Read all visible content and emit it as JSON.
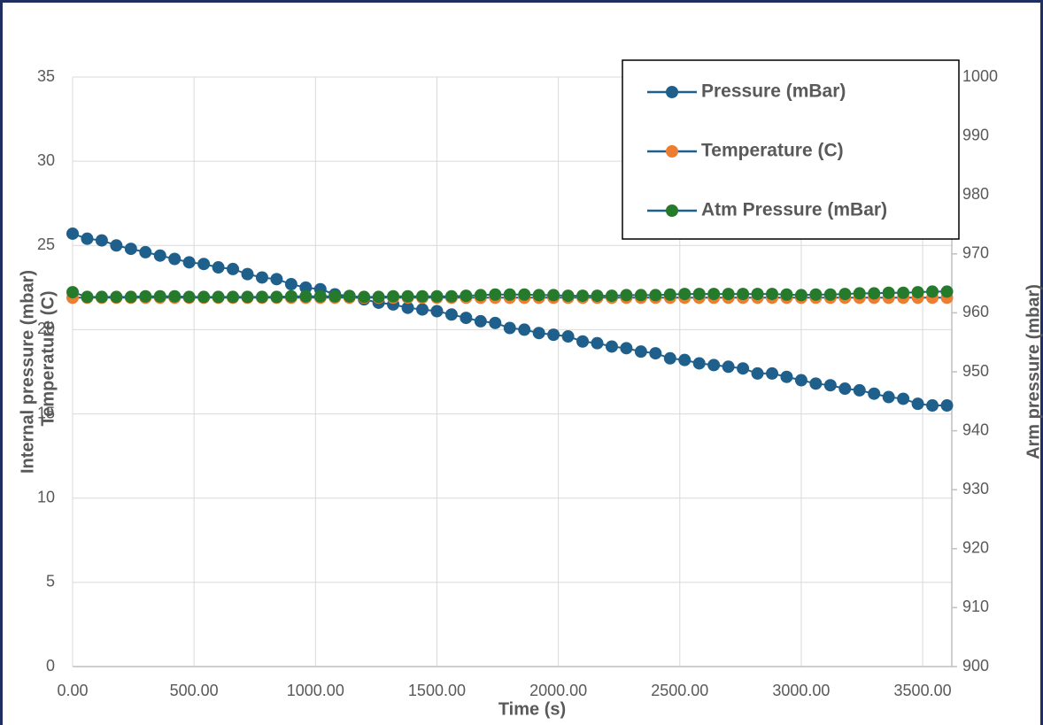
{
  "chart_data": {
    "type": "line",
    "x_label": "Time (s)",
    "y_label": "Internal pressure (mbar)",
    "y_label_2": "Temperature (C)",
    "y2_label": "Arm pressure (mbar)",
    "x": [
      0,
      60,
      120,
      180,
      240,
      300,
      360,
      420,
      480,
      540,
      600,
      660,
      720,
      780,
      840,
      900,
      960,
      1020,
      1080,
      1140,
      1200,
      1260,
      1320,
      1380,
      1440,
      1500,
      1560,
      1620,
      1680,
      1740,
      1800,
      1860,
      1920,
      1980,
      2040,
      2100,
      2160,
      2220,
      2280,
      2340,
      2400,
      2460,
      2520,
      2580,
      2640,
      2700,
      2760,
      2820,
      2880,
      2940,
      3000,
      3060,
      3120,
      3180,
      3240,
      3300,
      3360,
      3420,
      3480,
      3540,
      3600
    ],
    "line_color": "#1f5f8b",
    "series": [
      {
        "name": "Pressure (mBar)",
        "color": "#1f5f8b",
        "axis": "y",
        "values": [
          25.7,
          25.4,
          25.3,
          25.0,
          24.8,
          24.6,
          24.4,
          24.2,
          24.0,
          23.9,
          23.7,
          23.6,
          23.3,
          23.1,
          23.0,
          22.7,
          22.5,
          22.4,
          22.1,
          22.0,
          21.8,
          21.6,
          21.5,
          21.3,
          21.2,
          21.1,
          20.9,
          20.7,
          20.5,
          20.4,
          20.1,
          20.0,
          19.8,
          19.7,
          19.6,
          19.3,
          19.2,
          19.0,
          18.9,
          18.7,
          18.6,
          18.3,
          18.2,
          18.0,
          17.9,
          17.8,
          17.7,
          17.4,
          17.4,
          17.2,
          17.0,
          16.8,
          16.7,
          16.5,
          16.4,
          16.2,
          16.0,
          15.9,
          15.6,
          15.5,
          15.5
        ]
      },
      {
        "name": "Temperature (C)",
        "color": "#ed7d31",
        "axis": "y",
        "values": [
          21.9,
          21.9,
          21.9,
          21.9,
          21.9,
          21.9,
          21.9,
          21.9,
          21.9,
          21.9,
          21.9,
          21.9,
          21.9,
          21.9,
          21.9,
          21.9,
          21.9,
          21.9,
          21.9,
          21.9,
          21.9,
          21.9,
          21.9,
          21.9,
          21.9,
          21.9,
          21.9,
          21.9,
          21.9,
          21.9,
          21.9,
          21.9,
          21.9,
          21.9,
          21.9,
          21.9,
          21.9,
          21.9,
          21.9,
          21.9,
          21.9,
          21.9,
          21.9,
          21.9,
          21.9,
          21.9,
          21.9,
          21.9,
          21.9,
          21.9,
          21.9,
          21.9,
          21.9,
          21.9,
          21.9,
          21.9,
          21.9,
          21.9,
          21.9,
          21.9,
          21.9
        ]
      },
      {
        "name": "Atm Pressure (mBar)",
        "color": "#267a2c",
        "axis": "y2",
        "values": [
          963.5,
          962.7,
          962.7,
          962.7,
          962.7,
          962.8,
          962.8,
          962.8,
          962.7,
          962.7,
          962.7,
          962.7,
          962.7,
          962.7,
          962.7,
          962.8,
          962.8,
          962.8,
          962.8,
          962.8,
          962.7,
          962.7,
          962.8,
          962.8,
          962.8,
          962.8,
          962.8,
          962.9,
          963.0,
          963.1,
          963.1,
          963.1,
          963.0,
          963.0,
          962.9,
          962.9,
          962.9,
          962.9,
          963.0,
          963.0,
          963.0,
          963.1,
          963.2,
          963.2,
          963.2,
          963.2,
          963.2,
          963.2,
          963.2,
          963.1,
          963.0,
          963.1,
          963.1,
          963.2,
          963.3,
          963.3,
          963.4,
          963.4,
          963.5,
          963.6,
          963.6
        ]
      }
    ],
    "xlim": [
      0,
      3620
    ],
    "xticks": [
      {
        "value": 0,
        "label": "0.00"
      },
      {
        "value": 500,
        "label": "500.00"
      },
      {
        "value": 1000,
        "label": "1000.00"
      },
      {
        "value": 1500,
        "label": "1500.00"
      },
      {
        "value": 2000,
        "label": "2000.00"
      },
      {
        "value": 2500,
        "label": "2500.00"
      },
      {
        "value": 3000,
        "label": "3000.00"
      },
      {
        "value": 3500,
        "label": "3500.00"
      }
    ],
    "ylim": [
      0,
      35
    ],
    "yticks": [
      0,
      5,
      10,
      15,
      20,
      25,
      30,
      35
    ],
    "y2lim": [
      900,
      1000
    ],
    "y2ticks": [
      900,
      910,
      920,
      930,
      940,
      950,
      960,
      970,
      980,
      990,
      1000
    ],
    "grid": true
  }
}
